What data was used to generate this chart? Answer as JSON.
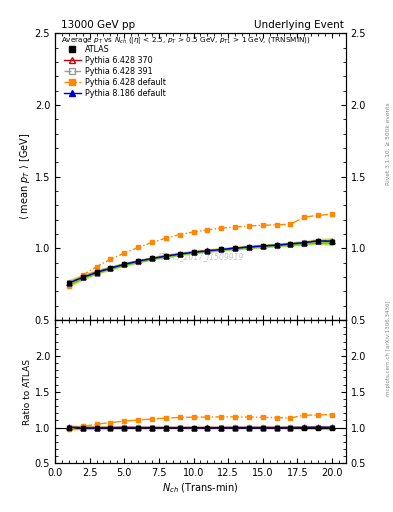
{
  "title_left": "13000 GeV pp",
  "title_right": "Underlying Event",
  "watermark": "ATLAS_2017_I1509919",
  "xlabel": "N_{ch} (Trans-min)",
  "ylabel_main": "<mean p_T> [GeV]",
  "ylabel_ratio": "Ratio to ATLAS",
  "ylim_main": [
    0.5,
    2.5
  ],
  "ylim_ratio": [
    0.5,
    2.5
  ],
  "xlim": [
    0,
    21
  ],
  "yticks_main": [
    0.5,
    1.0,
    1.5,
    2.0,
    2.5
  ],
  "yticks_ratio": [
    0.5,
    1.0,
    1.5,
    2.0
  ],
  "nch": [
    1,
    2,
    3,
    4,
    5,
    6,
    7,
    8,
    9,
    10,
    11,
    12,
    13,
    14,
    15,
    16,
    17,
    18,
    19,
    20
  ],
  "atlas_data": [
    0.755,
    0.8,
    0.835,
    0.863,
    0.888,
    0.91,
    0.93,
    0.947,
    0.961,
    0.974,
    0.984,
    0.993,
    1.001,
    1.009,
    1.016,
    1.023,
    1.03,
    1.038,
    1.048,
    1.047
  ],
  "atlas_err": [
    0.012,
    0.009,
    0.007,
    0.006,
    0.006,
    0.005,
    0.005,
    0.005,
    0.005,
    0.005,
    0.005,
    0.005,
    0.005,
    0.005,
    0.005,
    0.005,
    0.006,
    0.007,
    0.009,
    0.012
  ],
  "py6_370": [
    0.76,
    0.8,
    0.835,
    0.864,
    0.89,
    0.911,
    0.93,
    0.947,
    0.961,
    0.974,
    0.985,
    0.993,
    1.002,
    1.01,
    1.017,
    1.024,
    1.031,
    1.04,
    1.053,
    1.048
  ],
  "py6_391": [
    0.762,
    0.802,
    0.836,
    0.865,
    0.891,
    0.912,
    0.931,
    0.948,
    0.962,
    0.974,
    0.984,
    0.994,
    1.002,
    1.01,
    1.018,
    1.025,
    1.032,
    1.041,
    1.053,
    1.049
  ],
  "py6_default": [
    0.74,
    0.812,
    0.873,
    0.923,
    0.967,
    1.006,
    1.041,
    1.071,
    1.096,
    1.114,
    1.128,
    1.141,
    1.149,
    1.156,
    1.161,
    1.164,
    1.168,
    1.217,
    1.231,
    1.237
  ],
  "py8_default": [
    0.758,
    0.797,
    0.831,
    0.861,
    0.888,
    0.91,
    0.929,
    0.945,
    0.96,
    0.972,
    0.982,
    0.992,
    1.001,
    1.009,
    1.016,
    1.022,
    1.03,
    1.04,
    1.052,
    1.049
  ],
  "atlas_color": "#000000",
  "py6_370_color": "#cc0000",
  "py6_391_color": "#999999",
  "py6_default_color": "#ff8800",
  "py8_default_color": "#0000cc",
  "band_green": "#00cc00",
  "band_yellow": "#cccc00",
  "bg_color": "#ffffff"
}
